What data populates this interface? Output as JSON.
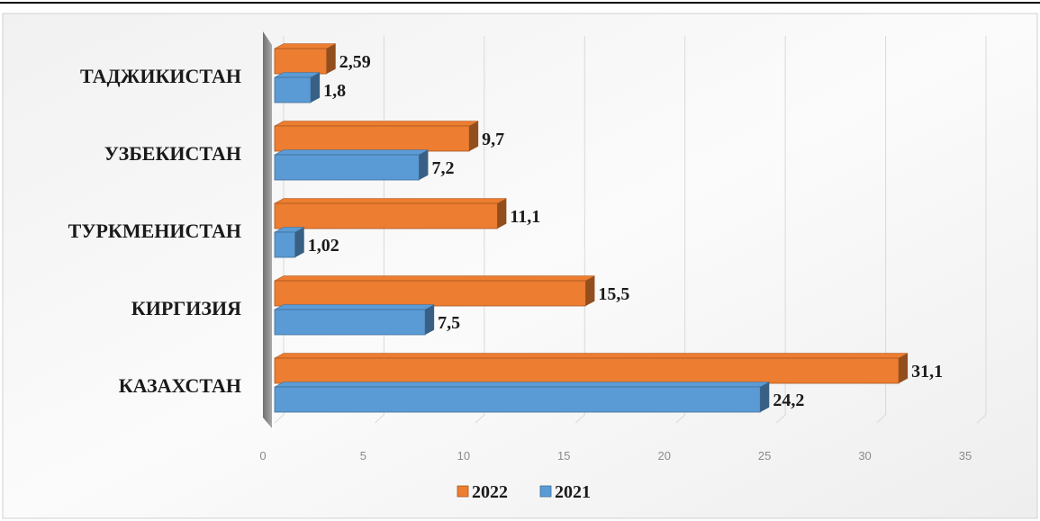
{
  "chart_data": {
    "type": "bar",
    "orientation": "horizontal",
    "style": "3d",
    "categories": [
      "ТАДЖИКИСТАН",
      "УЗБЕКИСТАН",
      "ТУРКМЕНИСТАН",
      "КИРГИЗИЯ",
      "КАЗАХСТАН"
    ],
    "series": [
      {
        "name": "2022",
        "values": [
          2.59,
          9.7,
          11.1,
          15.5,
          31.1
        ],
        "labels": [
          "2,59",
          "9,7",
          "11,1",
          "15,5",
          "31,1"
        ],
        "color": "#ED7D31"
      },
      {
        "name": "2021",
        "values": [
          1.8,
          7.2,
          1.02,
          7.5,
          24.2
        ],
        "labels": [
          "1,8",
          "7,2",
          "1,02",
          "7,5",
          "24,2"
        ],
        "color": "#5B9BD5"
      }
    ],
    "xlim": [
      0,
      35
    ],
    "xticks": [
      "0",
      "5",
      "10",
      "15",
      "20",
      "25",
      "30",
      "35"
    ],
    "grid": true,
    "legend": {
      "position": "bottom",
      "entries": [
        "2022",
        "2021"
      ]
    }
  }
}
